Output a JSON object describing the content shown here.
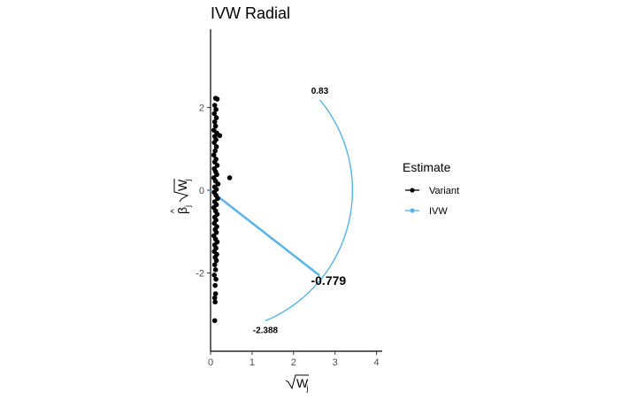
{
  "chart_data": {
    "type": "scatter",
    "title": "IVW Radial",
    "xlabel": "√W_j",
    "ylabel": "β̂_j √W_j",
    "xlim": [
      0,
      4.1
    ],
    "ylim": [
      -3.9,
      3.8
    ],
    "x_ticks": [
      0,
      1,
      2,
      3,
      4
    ],
    "y_ticks": [
      -2,
      0,
      2
    ],
    "grid": false,
    "legend": {
      "title": "Estimate",
      "placement": "right",
      "entries": [
        {
          "label": "Variant",
          "color": "#000000"
        },
        {
          "label": "IVW",
          "color": "#56B4E9"
        }
      ]
    },
    "ivw_estimate": -0.779,
    "arc": {
      "radius": 3.42,
      "lower_label": "-2.388",
      "upper_label": "0.83",
      "center_label": "-0.779"
    },
    "series": [
      {
        "name": "Variant",
        "color": "#000000",
        "points": [
          [
            0.12,
            2.22
          ],
          [
            0.16,
            2.2
          ],
          [
            0.1,
            2.05
          ],
          [
            0.13,
            1.95
          ],
          [
            0.09,
            1.85
          ],
          [
            0.14,
            1.75
          ],
          [
            0.1,
            1.65
          ],
          [
            0.12,
            1.55
          ],
          [
            0.08,
            1.45
          ],
          [
            0.15,
            1.38
          ],
          [
            0.1,
            1.3
          ],
          [
            0.22,
            1.32
          ],
          [
            0.13,
            1.22
          ],
          [
            0.09,
            1.15
          ],
          [
            0.14,
            1.05
          ],
          [
            0.11,
            0.95
          ],
          [
            0.08,
            0.85
          ],
          [
            0.13,
            0.75
          ],
          [
            0.1,
            0.68
          ],
          [
            0.16,
            0.6
          ],
          [
            0.09,
            0.52
          ],
          [
            0.12,
            0.45
          ],
          [
            0.15,
            0.38
          ],
          [
            0.08,
            0.3
          ],
          [
            0.46,
            0.3
          ],
          [
            0.12,
            0.22
          ],
          [
            0.18,
            0.15
          ],
          [
            0.1,
            0.08
          ],
          [
            0.14,
            0.02
          ],
          [
            0.09,
            -0.05
          ],
          [
            0.13,
            -0.12
          ],
          [
            0.17,
            -0.2
          ],
          [
            0.1,
            -0.28
          ],
          [
            0.14,
            -0.35
          ],
          [
            0.08,
            -0.42
          ],
          [
            0.12,
            -0.5
          ],
          [
            0.16,
            -0.58
          ],
          [
            0.1,
            -0.65
          ],
          [
            0.13,
            -0.72
          ],
          [
            0.09,
            -0.8
          ],
          [
            0.15,
            -0.88
          ],
          [
            0.11,
            -0.95
          ],
          [
            0.14,
            -1.02
          ],
          [
            0.08,
            -1.1
          ],
          [
            0.12,
            -1.18
          ],
          [
            0.16,
            -1.25
          ],
          [
            0.1,
            -1.32
          ],
          [
            0.13,
            -1.4
          ],
          [
            0.09,
            -1.48
          ],
          [
            0.15,
            -1.55
          ],
          [
            0.11,
            -1.62
          ],
          [
            0.14,
            -1.7
          ],
          [
            0.1,
            -1.8
          ],
          [
            0.12,
            -1.92
          ],
          [
            0.09,
            -2.05
          ],
          [
            0.13,
            -2.15
          ],
          [
            0.11,
            -2.3
          ],
          [
            0.12,
            -2.5
          ],
          [
            0.1,
            -2.6
          ],
          [
            0.11,
            -2.7
          ],
          [
            0.1,
            -3.15
          ]
        ]
      },
      {
        "name": "IVW",
        "color": "#56B4E9",
        "line": {
          "x": [
            0,
            2.63
          ],
          "y": [
            0,
            -2.05
          ]
        }
      }
    ]
  }
}
